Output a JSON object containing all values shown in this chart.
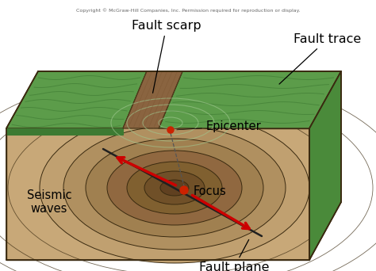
{
  "copyright_text": "Copyright © McGraw-Hill Companies, Inc. Permission required for reproduction or display.",
  "labels": {
    "fault_scarp": "Fault scarp",
    "fault_trace": "Fault trace",
    "epicenter": "Epicenter",
    "focus": "Focus",
    "seismic_waves": "Seismic\nwaves",
    "fault_plane": "Fault plane"
  },
  "colors": {
    "background": "#ffffff",
    "green_top": "#5c9c4a",
    "green_dark": "#3d7a32",
    "green_side": "#4a8a3a",
    "green_wave": "#a0c890",
    "brown_front": "#c8a878",
    "brown_top": "#b89060",
    "brown_right": "#9a7248",
    "brown_scarp": "#8a6440",
    "brown_inner": "#7a5430",
    "ring1": "#c0a070",
    "ring2": "#b09060",
    "ring3": "#a08050",
    "ring4": "#906840",
    "ring5": "#806030",
    "ring6": "#705028",
    "ring_center": "#604020",
    "focus_red": "#cc2200",
    "arrow_red": "#cc0000",
    "outline": "#3a2a10",
    "fault_line": "#202020"
  },
  "figsize": [
    4.74,
    3.42
  ],
  "dpi": 100
}
